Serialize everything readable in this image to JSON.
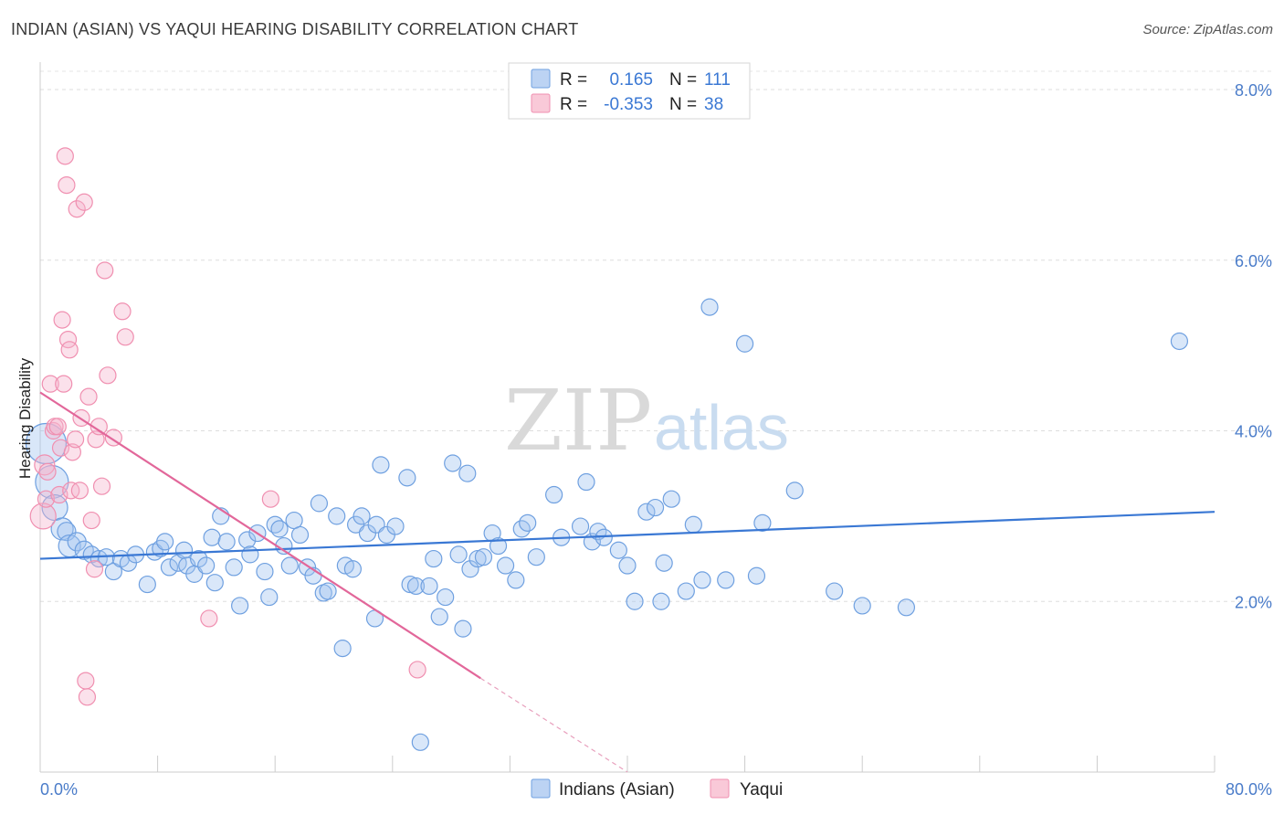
{
  "title": "INDIAN (ASIAN) VS YAQUI HEARING DISABILITY CORRELATION CHART",
  "source": "Source: ZipAtlas.com",
  "watermark": {
    "part1": "ZIP",
    "part2": "atlas"
  },
  "legend_top": {
    "rows": [
      {
        "r_label": "R =",
        "r_value": "0.165",
        "n_label": "N =",
        "n_value": "111",
        "color": "#6fa0e0"
      },
      {
        "r_label": "R =",
        "r_value": "-0.353",
        "n_label": "N =",
        "n_value": "38",
        "color": "#f08fb0"
      }
    ]
  },
  "legend_bottom": {
    "items": [
      {
        "label": "Indians (Asian)"
      },
      {
        "label": "Yaqui"
      }
    ]
  },
  "chart_data": {
    "type": "scatter",
    "title": "INDIAN (ASIAN) VS YAQUI HEARING DISABILITY CORRELATION CHART",
    "xlabel": "",
    "ylabel": "Hearing Disability",
    "xlim": [
      0,
      80
    ],
    "ylim": [
      0,
      8.3
    ],
    "x_tick_labels": [
      "0.0%",
      "80.0%"
    ],
    "y_ticks": [
      2,
      4,
      6,
      8
    ],
    "y_tick_labels": [
      "2.0%",
      "4.0%",
      "6.0%",
      "8.0%"
    ],
    "grid": true,
    "legend_position": "top-center",
    "series": [
      {
        "name": "Indians (Asian)",
        "color": "#6fa0e0",
        "r": 0.165,
        "n": 111,
        "trend": {
          "x": [
            0,
            80
          ],
          "y": [
            2.5,
            3.05
          ]
        },
        "points": [
          [
            0.4,
            3.85,
            22
          ],
          [
            0.8,
            3.4,
            18
          ],
          [
            1.0,
            3.1,
            14
          ],
          [
            1.5,
            2.85,
            12
          ],
          [
            1.8,
            2.82,
            10
          ],
          [
            2.0,
            2.65,
            12
          ],
          [
            2.5,
            2.7,
            10
          ],
          [
            3.0,
            2.6,
            10
          ],
          [
            3.5,
            2.55,
            9
          ],
          [
            4.0,
            2.5,
            9
          ],
          [
            4.5,
            2.52,
            9
          ],
          [
            5.0,
            2.35,
            9
          ],
          [
            5.5,
            2.5,
            9
          ],
          [
            6.0,
            2.45,
            9
          ],
          [
            6.5,
            2.55,
            9
          ],
          [
            7.3,
            2.2,
            9
          ],
          [
            7.8,
            2.58,
            9
          ],
          [
            8.2,
            2.62,
            9
          ],
          [
            8.5,
            2.7,
            9
          ],
          [
            8.8,
            2.4,
            9
          ],
          [
            9.4,
            2.45,
            9
          ],
          [
            9.8,
            2.6,
            9
          ],
          [
            10.0,
            2.42,
            9
          ],
          [
            10.5,
            2.32,
            9
          ],
          [
            10.8,
            2.5,
            9
          ],
          [
            11.3,
            2.42,
            9
          ],
          [
            11.7,
            2.75,
            9
          ],
          [
            11.9,
            2.22,
            9
          ],
          [
            12.3,
            3.0,
            9
          ],
          [
            12.7,
            2.7,
            9
          ],
          [
            13.2,
            2.4,
            9
          ],
          [
            13.6,
            1.95,
            9
          ],
          [
            14.1,
            2.72,
            9
          ],
          [
            14.3,
            2.55,
            9
          ],
          [
            14.8,
            2.8,
            9
          ],
          [
            15.3,
            2.35,
            9
          ],
          [
            15.6,
            2.05,
            9
          ],
          [
            16.0,
            2.9,
            9
          ],
          [
            16.3,
            2.85,
            9
          ],
          [
            16.6,
            2.65,
            9
          ],
          [
            17.0,
            2.42,
            9
          ],
          [
            17.3,
            2.95,
            9
          ],
          [
            17.7,
            2.78,
            9
          ],
          [
            18.2,
            2.4,
            9
          ],
          [
            18.6,
            2.3,
            9
          ],
          [
            19.0,
            3.15,
            9
          ],
          [
            19.3,
            2.1,
            9
          ],
          [
            19.6,
            2.12,
            9
          ],
          [
            20.2,
            3.0,
            9
          ],
          [
            20.6,
            1.45,
            9
          ],
          [
            20.8,
            2.42,
            9
          ],
          [
            21.3,
            2.38,
            9
          ],
          [
            21.5,
            2.9,
            9
          ],
          [
            21.9,
            3.0,
            9
          ],
          [
            22.3,
            2.8,
            9
          ],
          [
            22.8,
            1.8,
            9
          ],
          [
            22.9,
            2.9,
            9
          ],
          [
            23.2,
            3.6,
            9
          ],
          [
            23.6,
            2.78,
            9
          ],
          [
            24.2,
            2.88,
            9
          ],
          [
            25.0,
            3.45,
            9
          ],
          [
            25.2,
            2.2,
            9
          ],
          [
            25.6,
            2.18,
            9
          ],
          [
            25.9,
            0.35,
            9
          ],
          [
            26.5,
            2.18,
            9
          ],
          [
            26.8,
            2.5,
            9
          ],
          [
            27.2,
            1.82,
            9
          ],
          [
            27.6,
            2.05,
            9
          ],
          [
            28.1,
            3.62,
            9
          ],
          [
            28.5,
            2.55,
            9
          ],
          [
            28.8,
            1.68,
            9
          ],
          [
            29.1,
            3.5,
            9
          ],
          [
            29.3,
            2.38,
            9
          ],
          [
            29.8,
            2.5,
            9
          ],
          [
            30.2,
            2.52,
            9
          ],
          [
            30.8,
            2.8,
            9
          ],
          [
            31.2,
            2.65,
            9
          ],
          [
            31.7,
            2.42,
            9
          ],
          [
            32.4,
            2.25,
            9
          ],
          [
            32.8,
            2.85,
            9
          ],
          [
            33.2,
            2.92,
            9
          ],
          [
            33.8,
            2.52,
            9
          ],
          [
            35.0,
            3.25,
            9
          ],
          [
            35.5,
            2.75,
            9
          ],
          [
            36.8,
            2.88,
            9
          ],
          [
            37.2,
            3.4,
            9
          ],
          [
            37.6,
            2.7,
            9
          ],
          [
            38.0,
            2.82,
            9
          ],
          [
            38.4,
            2.75,
            9
          ],
          [
            39.4,
            2.6,
            9
          ],
          [
            40.0,
            2.42,
            9
          ],
          [
            40.5,
            2.0,
            9
          ],
          [
            41.3,
            3.05,
            9
          ],
          [
            41.9,
            3.1,
            9
          ],
          [
            42.3,
            2.0,
            9
          ],
          [
            42.5,
            2.45,
            9
          ],
          [
            43.0,
            3.2,
            9
          ],
          [
            44.0,
            2.12,
            9
          ],
          [
            44.5,
            2.9,
            9
          ],
          [
            45.1,
            2.25,
            9
          ],
          [
            45.6,
            5.45,
            9
          ],
          [
            46.7,
            2.25,
            9
          ],
          [
            48.0,
            5.02,
            9
          ],
          [
            48.8,
            2.3,
            9
          ],
          [
            49.2,
            2.92,
            9
          ],
          [
            51.4,
            3.3,
            9
          ],
          [
            54.1,
            2.12,
            9
          ],
          [
            56.0,
            1.95,
            9
          ],
          [
            59.0,
            1.93,
            9
          ],
          [
            77.6,
            5.05,
            9
          ]
        ]
      },
      {
        "name": "Yaqui",
        "color": "#f08fb0",
        "r": -0.353,
        "n": 38,
        "trend": {
          "x": [
            0,
            30
          ],
          "y": [
            4.45,
            1.1
          ]
        },
        "trend_extension": {
          "x": [
            30,
            40
          ],
          "y": [
            1.1,
            0.0
          ]
        },
        "points": [
          [
            0.2,
            3.0,
            14
          ],
          [
            0.3,
            3.6,
            11
          ],
          [
            0.4,
            3.2,
            9
          ],
          [
            0.5,
            3.52,
            9
          ],
          [
            0.7,
            4.55,
            9
          ],
          [
            0.9,
            4.0,
            9
          ],
          [
            1.0,
            4.05,
            9
          ],
          [
            1.2,
            4.05,
            9
          ],
          [
            1.3,
            3.25,
            9
          ],
          [
            1.4,
            3.8,
            9
          ],
          [
            1.5,
            5.3,
            9
          ],
          [
            1.6,
            4.55,
            9
          ],
          [
            1.7,
            7.22,
            9
          ],
          [
            1.8,
            6.88,
            9
          ],
          [
            1.9,
            5.07,
            9
          ],
          [
            2.0,
            4.95,
            9
          ],
          [
            2.1,
            3.3,
            9
          ],
          [
            2.2,
            3.75,
            9
          ],
          [
            2.4,
            3.9,
            9
          ],
          [
            2.5,
            6.6,
            9
          ],
          [
            2.7,
            3.3,
            9
          ],
          [
            2.8,
            4.15,
            9
          ],
          [
            3.0,
            6.68,
            9
          ],
          [
            3.1,
            1.07,
            9
          ],
          [
            3.2,
            0.88,
            9
          ],
          [
            3.3,
            4.4,
            9
          ],
          [
            3.5,
            2.95,
            9
          ],
          [
            3.7,
            2.38,
            9
          ],
          [
            3.8,
            3.9,
            9
          ],
          [
            4.0,
            4.05,
            9
          ],
          [
            4.2,
            3.35,
            9
          ],
          [
            4.4,
            5.88,
            9
          ],
          [
            4.6,
            4.65,
            9
          ],
          [
            5.0,
            3.92,
            9
          ],
          [
            5.6,
            5.4,
            9
          ],
          [
            5.8,
            5.1,
            9
          ],
          [
            11.5,
            1.8,
            9
          ],
          [
            15.7,
            3.2,
            9
          ],
          [
            25.7,
            1.2,
            9
          ]
        ]
      }
    ]
  }
}
